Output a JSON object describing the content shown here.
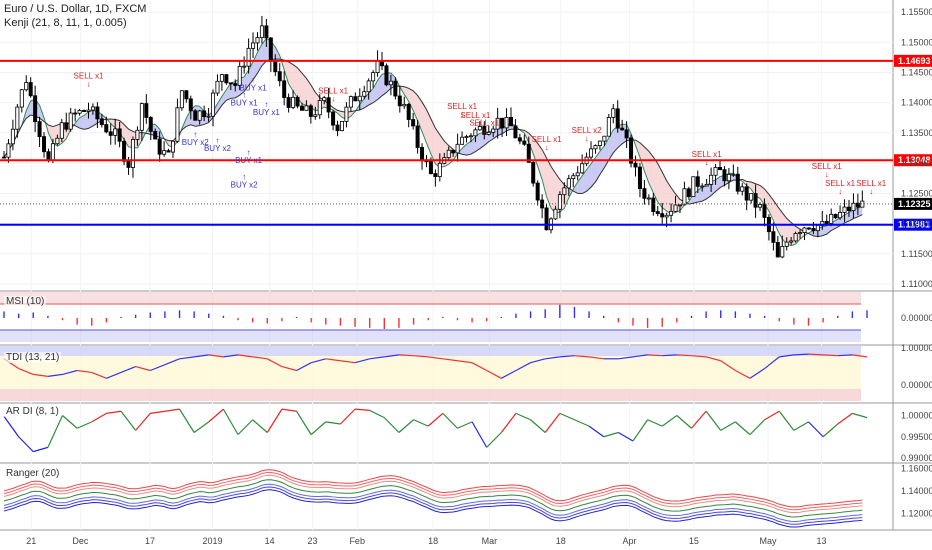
{
  "header": {
    "symbol_title": "Euro / U.S. Dollar, 1D, FXCM",
    "indicator_title": "Kenji (21, 8, 11, 1, 0.005)"
  },
  "panes": {
    "msi_label": "MSI (10)",
    "tdi_label": "TDI (13, 21)",
    "ardi_label": "AR DI (8, 1)",
    "ranger_label": "Ranger (20)"
  },
  "colors": {
    "up_candle": "#ffffff",
    "down_candle": "#000000",
    "resistance_line": "#ff0000",
    "support_line": "#0000ff",
    "price_tag": "#000000",
    "buy_signal": "#3333cc",
    "sell_signal": "#dd2222",
    "bull_cloud": "#b3b3f0",
    "bear_cloud": "#f5c8c8",
    "ma_fast": "#2e8b57",
    "ma_slow": "#333333"
  },
  "chart_data": {
    "type": "candlestick",
    "x_tick_labels": [
      "21",
      "Dec",
      "17",
      "2019",
      "14",
      "23",
      "Feb",
      "18",
      "Mar",
      "18",
      "Apr",
      "15",
      "May",
      "13"
    ],
    "main_pane": {
      "y_tick_labels": [
        "1.15500",
        "1.15000",
        "1.14500",
        "1.14000",
        "1.13500",
        "1.13000",
        "1.12500",
        "1.12000",
        "1.11500",
        "1.11000"
      ],
      "ylim": [
        1.109,
        1.157
      ],
      "levels": [
        {
          "value": 1.14693,
          "label": "1.14693",
          "kind": "resistance"
        },
        {
          "value": 1.13048,
          "label": "1.13048",
          "kind": "resistance"
        },
        {
          "value": 1.12325,
          "label": "1.12325",
          "kind": "last_price"
        },
        {
          "value": 1.11981,
          "label": "1.11981",
          "kind": "support"
        }
      ],
      "close_path": [
        {
          "i": 0,
          "v": 1.131
        },
        {
          "i": 3,
          "v": 1.1395
        },
        {
          "i": 5,
          "v": 1.144
        },
        {
          "i": 7,
          "v": 1.138
        },
        {
          "i": 10,
          "v": 1.13
        },
        {
          "i": 13,
          "v": 1.136
        },
        {
          "i": 16,
          "v": 1.138
        },
        {
          "i": 19,
          "v": 1.139
        },
        {
          "i": 22,
          "v": 1.1365
        },
        {
          "i": 25,
          "v": 1.1345
        },
        {
          "i": 28,
          "v": 1.13
        },
        {
          "i": 31,
          "v": 1.14
        },
        {
          "i": 34,
          "v": 1.133
        },
        {
          "i": 37,
          "v": 1.131
        },
        {
          "i": 40,
          "v": 1.142
        },
        {
          "i": 43,
          "v": 1.138
        },
        {
          "i": 46,
          "v": 1.139
        },
        {
          "i": 49,
          "v": 1.145
        },
        {
          "i": 52,
          "v": 1.143
        },
        {
          "i": 55,
          "v": 1.149
        },
        {
          "i": 58,
          "v": 1.152
        },
        {
          "i": 60,
          "v": 1.147
        },
        {
          "i": 63,
          "v": 1.141
        },
        {
          "i": 66,
          "v": 1.139
        },
        {
          "i": 69,
          "v": 1.138
        },
        {
          "i": 72,
          "v": 1.14
        },
        {
          "i": 75,
          "v": 1.136
        },
        {
          "i": 78,
          "v": 1.14
        },
        {
          "i": 81,
          "v": 1.143
        },
        {
          "i": 84,
          "v": 1.146
        },
        {
          "i": 87,
          "v": 1.143
        },
        {
          "i": 90,
          "v": 1.139
        },
        {
          "i": 93,
          "v": 1.133
        },
        {
          "i": 96,
          "v": 1.128
        },
        {
          "i": 99,
          "v": 1.13
        },
        {
          "i": 102,
          "v": 1.1335
        },
        {
          "i": 105,
          "v": 1.135
        },
        {
          "i": 108,
          "v": 1.136
        },
        {
          "i": 111,
          "v": 1.137
        },
        {
          "i": 114,
          "v": 1.136
        },
        {
          "i": 117,
          "v": 1.132
        },
        {
          "i": 120,
          "v": 1.125
        },
        {
          "i": 122,
          "v": 1.12
        },
        {
          "i": 125,
          "v": 1.125
        },
        {
          "i": 128,
          "v": 1.128
        },
        {
          "i": 131,
          "v": 1.131
        },
        {
          "i": 134,
          "v": 1.133
        },
        {
          "i": 137,
          "v": 1.139
        },
        {
          "i": 140,
          "v": 1.133
        },
        {
          "i": 143,
          "v": 1.126
        },
        {
          "i": 146,
          "v": 1.123
        },
        {
          "i": 149,
          "v": 1.122
        },
        {
          "i": 152,
          "v": 1.124
        },
        {
          "i": 155,
          "v": 1.1265
        },
        {
          "i": 158,
          "v": 1.1275
        },
        {
          "i": 161,
          "v": 1.1285
        },
        {
          "i": 164,
          "v": 1.127
        },
        {
          "i": 167,
          "v": 1.1245
        },
        {
          "i": 170,
          "v": 1.1225
        },
        {
          "i": 172,
          "v": 1.1185
        },
        {
          "i": 174,
          "v": 1.114
        },
        {
          "i": 176,
          "v": 1.117
        },
        {
          "i": 178,
          "v": 1.119
        },
        {
          "i": 181,
          "v": 1.12
        },
        {
          "i": 184,
          "v": 1.1195
        },
        {
          "i": 187,
          "v": 1.121
        },
        {
          "i": 190,
          "v": 1.1225
        },
        {
          "i": 193,
          "v": 1.1232
        }
      ],
      "signals": [
        {
          "label": "SELL x1",
          "i": 19,
          "v": 1.144,
          "side": "sell"
        },
        {
          "label": "SELL x1",
          "i": 74,
          "v": 1.1415,
          "side": "sell"
        },
        {
          "label": "SELL x1",
          "i": 103,
          "v": 1.139,
          "side": "sell"
        },
        {
          "label": "SELL x1",
          "i": 106,
          "v": 1.1375,
          "side": "sell"
        },
        {
          "label": "SELL x1",
          "i": 108,
          "v": 1.1362,
          "side": "sell"
        },
        {
          "label": "SELL x1",
          "i": 122,
          "v": 1.1335,
          "side": "sell"
        },
        {
          "label": "SELL x2",
          "i": 131,
          "v": 1.135,
          "side": "sell"
        },
        {
          "label": "SELL x1",
          "i": 158,
          "v": 1.131,
          "side": "sell"
        },
        {
          "label": "SELL x1",
          "i": 185,
          "v": 1.129,
          "side": "sell"
        },
        {
          "label": "SELL x1",
          "i": 188,
          "v": 1.1262,
          "side": "sell"
        },
        {
          "label": "SELL x1",
          "i": 195,
          "v": 1.1262,
          "side": "sell"
        },
        {
          "label": "BUY x1",
          "i": 54,
          "v": 1.1395,
          "side": "buy"
        },
        {
          "label": "BUY x1",
          "i": 56,
          "v": 1.142,
          "side": "buy"
        },
        {
          "label": "BUY x1",
          "i": 59,
          "v": 1.138,
          "side": "buy"
        },
        {
          "label": "BUY x2",
          "i": 43,
          "v": 1.133,
          "side": "buy"
        },
        {
          "label": "BUY x2",
          "i": 48,
          "v": 1.132,
          "side": "buy"
        },
        {
          "label": "BUY x1",
          "i": 55,
          "v": 1.13,
          "side": "buy"
        },
        {
          "label": "BUY x2",
          "i": 54,
          "v": 1.126,
          "side": "buy"
        }
      ]
    },
    "msi": {
      "y_tick_labels": [
        "0.00000"
      ],
      "values": [
        0.3,
        0.2,
        0.25,
        0.1,
        -0.1,
        -0.3,
        -0.35,
        -0.2,
        0.05,
        0.15,
        0.25,
        0.3,
        0.35,
        0.3,
        0.2,
        0.1,
        -0.1,
        -0.2,
        -0.25,
        -0.15,
        0.05,
        -0.2,
        -0.3,
        -0.35,
        -0.4,
        -0.45,
        -0.5,
        -0.45,
        -0.3,
        -0.1,
        0.05,
        -0.1,
        -0.2,
        -0.15,
        0.05,
        0.2,
        0.3,
        0.4,
        0.6,
        0.5,
        0.3,
        0.1,
        -0.2,
        -0.35,
        -0.45,
        -0.4,
        -0.2,
        0.1,
        0.3,
        0.35,
        0.3,
        0.2,
        0.1,
        -0.15,
        -0.3,
        -0.35,
        -0.2,
        0.1,
        0.3,
        0.35
      ]
    },
    "tdi": {
      "y_tick_labels": [
        "1.00000",
        "0.00000"
      ],
      "values": [
        0.8,
        0.55,
        0.4,
        0.35,
        0.4,
        0.5,
        0.45,
        0.3,
        0.45,
        0.6,
        0.5,
        0.65,
        0.8,
        0.85,
        0.9,
        0.85,
        0.9,
        0.85,
        0.8,
        0.6,
        0.5,
        0.7,
        0.8,
        0.75,
        0.7,
        0.8,
        0.85,
        0.9,
        0.88,
        0.85,
        0.8,
        0.75,
        0.7,
        0.5,
        0.3,
        0.5,
        0.7,
        0.8,
        0.85,
        0.88,
        0.85,
        0.8,
        0.8,
        0.85,
        0.9,
        0.88,
        0.9,
        0.88,
        0.85,
        0.75,
        0.5,
        0.3,
        0.55,
        0.85,
        0.9,
        0.92,
        0.9,
        0.88,
        0.9,
        0.85
      ]
    },
    "ardi": {
      "y_tick_labels": [
        "1.00000",
        "0.99500",
        "0.99000"
      ],
      "values": [
        0.9998,
        0.995,
        0.9915,
        0.9925,
        1.0,
        0.997,
        0.9985,
        1.0005,
        1.001,
        0.9965,
        1.0005,
        1.001,
        1.0015,
        0.996,
        0.9985,
        1.0015,
        0.9955,
        0.999,
        0.996,
        1.0015,
        1.001,
        0.9955,
        0.9985,
        0.998,
        1.0015,
        1.0012,
        0.9995,
        0.996,
        0.999,
        0.9975,
        1.0005,
        0.997,
        0.9985,
        0.9925,
        0.996,
        1.0005,
        0.999,
        0.996,
        1.0005,
        0.999,
        0.9975,
        0.995,
        0.996,
        0.994,
        0.999,
        0.9975,
        1.0,
        0.997,
        1.001,
        0.9965,
        0.9985,
        0.9955,
        0.999,
        1.001,
        0.9965,
        0.9985,
        0.995,
        0.998,
        1.0005,
        0.9995
      ]
    },
    "ranger": {
      "y_tick_labels": [
        "1.16000",
        "1.14000",
        "1.12000"
      ],
      "ylim": [
        1.105,
        1.165
      ]
    }
  }
}
